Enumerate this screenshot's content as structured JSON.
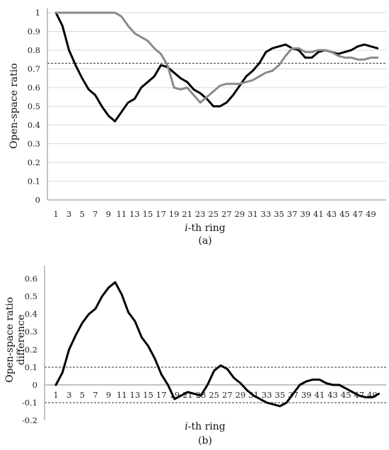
{
  "chart_data": [
    {
      "type": "line",
      "panel_label": "(a)",
      "xlabel_italic": "i",
      "xlabel_rest": "-th ring",
      "ylabel": "Open-space ratio",
      "ylim": [
        0,
        1
      ],
      "yticks": [
        0,
        0.1,
        0.2,
        0.3,
        0.4,
        0.5,
        0.6,
        0.7,
        0.8,
        0.9,
        1
      ],
      "ytick_labels": [
        "0",
        "0.1",
        "0.2",
        "0.3",
        "0.4",
        "0.5",
        "0.6",
        "0.7",
        "0.8",
        "0.9",
        "1"
      ],
      "xtick_labels": [
        "1",
        "3",
        "5",
        "7",
        "9",
        "11",
        "13",
        "15",
        "17",
        "19",
        "21",
        "23",
        "25",
        "27",
        "29",
        "31",
        "33",
        "35",
        "37",
        "39",
        "41",
        "43",
        "45",
        "47",
        "49"
      ],
      "grid": true,
      "x": [
        1,
        2,
        3,
        4,
        5,
        6,
        7,
        8,
        9,
        10,
        11,
        12,
        13,
        14,
        15,
        16,
        17,
        18,
        19,
        20,
        21,
        22,
        23,
        24,
        25,
        26,
        27,
        28,
        29,
        30,
        31,
        32,
        33,
        34,
        35,
        36,
        37,
        38,
        39,
        40,
        41,
        42,
        43,
        44,
        45,
        46,
        47,
        48,
        49,
        50
      ],
      "series": [
        {
          "color": "#000000",
          "values": [
            1.0,
            0.93,
            0.8,
            0.72,
            0.65,
            0.59,
            0.56,
            0.5,
            0.45,
            0.42,
            0.47,
            0.52,
            0.54,
            0.6,
            0.63,
            0.66,
            0.72,
            0.71,
            0.68,
            0.65,
            0.63,
            0.59,
            0.57,
            0.54,
            0.5,
            0.5,
            0.52,
            0.56,
            0.61,
            0.66,
            0.69,
            0.73,
            0.79,
            0.81,
            0.82,
            0.83,
            0.81,
            0.8,
            0.76,
            0.76,
            0.79,
            0.8,
            0.79,
            0.78,
            0.79,
            0.8,
            0.82,
            0.83,
            0.82,
            0.81
          ]
        },
        {
          "color": "#8a8a8a",
          "values": [
            1.0,
            1.0,
            1.0,
            1.0,
            1.0,
            1.0,
            1.0,
            1.0,
            1.0,
            1.0,
            0.98,
            0.93,
            0.89,
            0.87,
            0.85,
            0.81,
            0.78,
            0.72,
            0.6,
            0.59,
            0.6,
            0.56,
            0.52,
            0.55,
            0.58,
            0.61,
            0.62,
            0.62,
            0.62,
            0.63,
            0.64,
            0.66,
            0.68,
            0.69,
            0.72,
            0.77,
            0.81,
            0.81,
            0.79,
            0.79,
            0.8,
            0.8,
            0.79,
            0.77,
            0.76,
            0.76,
            0.75,
            0.75,
            0.76,
            0.76
          ]
        }
      ],
      "reference_line": {
        "y": 0.73,
        "style": "dashed"
      }
    },
    {
      "type": "line",
      "panel_label": "(b)",
      "xlabel_italic": "i",
      "xlabel_rest": "-th ring",
      "ylabel_line1": "Open-space ratio",
      "ylabel_line2": "difference",
      "ylim": [
        -0.2,
        0.65
      ],
      "yticks": [
        -0.2,
        -0.1,
        0,
        0.1,
        0.2,
        0.3,
        0.4,
        0.5,
        0.6
      ],
      "ytick_labels": [
        "-0.2",
        "-0.1",
        "0",
        "0.1",
        "0.2",
        "0.3",
        "0.4",
        "0.5",
        "0.6"
      ],
      "xtick_labels": [
        "1",
        "3",
        "5",
        "7",
        "9",
        "11",
        "13",
        "15",
        "17",
        "19",
        "21",
        "23",
        "25",
        "27",
        "29",
        "31",
        "33",
        "35",
        "37",
        "39",
        "41",
        "43",
        "45",
        "47",
        "49"
      ],
      "grid": false,
      "x": [
        1,
        2,
        3,
        4,
        5,
        6,
        7,
        8,
        9,
        10,
        11,
        12,
        13,
        14,
        15,
        16,
        17,
        18,
        19,
        20,
        21,
        22,
        23,
        24,
        25,
        26,
        27,
        28,
        29,
        30,
        31,
        32,
        33,
        34,
        35,
        36,
        37,
        38,
        39,
        40,
        41,
        42,
        43,
        44,
        45,
        46,
        47,
        48,
        49,
        50
      ],
      "series": [
        {
          "color": "#000000",
          "values": [
            0.0,
            0.07,
            0.2,
            0.28,
            0.35,
            0.4,
            0.43,
            0.5,
            0.55,
            0.58,
            0.51,
            0.41,
            0.36,
            0.27,
            0.22,
            0.15,
            0.06,
            0.0,
            -0.08,
            -0.06,
            -0.04,
            -0.05,
            -0.06,
            0.0,
            0.08,
            0.11,
            0.09,
            0.04,
            0.01,
            -0.03,
            -0.06,
            -0.08,
            -0.1,
            -0.11,
            -0.12,
            -0.1,
            -0.05,
            0.0,
            0.02,
            0.03,
            0.03,
            0.01,
            0.0,
            0.0,
            -0.02,
            -0.04,
            -0.06,
            -0.07,
            -0.07,
            -0.05
          ]
        }
      ],
      "reference_lines": [
        {
          "y": 0.1,
          "style": "dashed"
        },
        {
          "y": -0.1,
          "style": "dashed"
        }
      ]
    }
  ]
}
